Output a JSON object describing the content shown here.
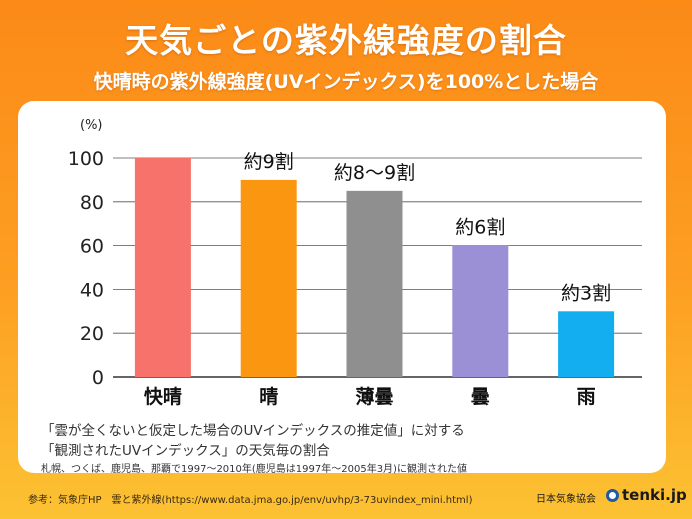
{
  "title": "天気ごとの紫外線強度の割合",
  "subtitle": "快晴時の紫外線強度(UVインデックス)を100%とした場合",
  "chart_data": {
    "type": "bar",
    "unit_label": "(%)",
    "categories": [
      "快晴",
      "晴",
      "薄曇",
      "曇",
      "雨"
    ],
    "values": [
      100,
      90,
      85,
      60,
      30
    ],
    "data_labels": [
      "",
      "約9割",
      "約8〜9割",
      "約6割",
      "約3割"
    ],
    "colors": [
      "#f6726a",
      "#fb9611",
      "#8f8f8f",
      "#9b8fd6",
      "#12aeef"
    ],
    "ylim": [
      0,
      100
    ],
    "yticks": [
      0,
      20,
      40,
      60,
      80,
      100
    ],
    "grid": true
  },
  "notes": {
    "line1": "「雲が全くないと仮定した場合のUVインデックスの推定値」に対する",
    "line2": "「観測されたUVインデックス」の天気毎の割合",
    "line3": "札幌、つくば、鹿児島、那覇で1997～2010年(鹿児島は1997年～2005年3月)に観測された値"
  },
  "footer": {
    "source": "参考：気象庁HP　雲と紫外線(https://www.data.jma.go.jp/env/uvhp/3-73uvindex_mini.html)",
    "logo_jwa": "日本気象協会",
    "logo_tenki": "tenki.jp"
  }
}
